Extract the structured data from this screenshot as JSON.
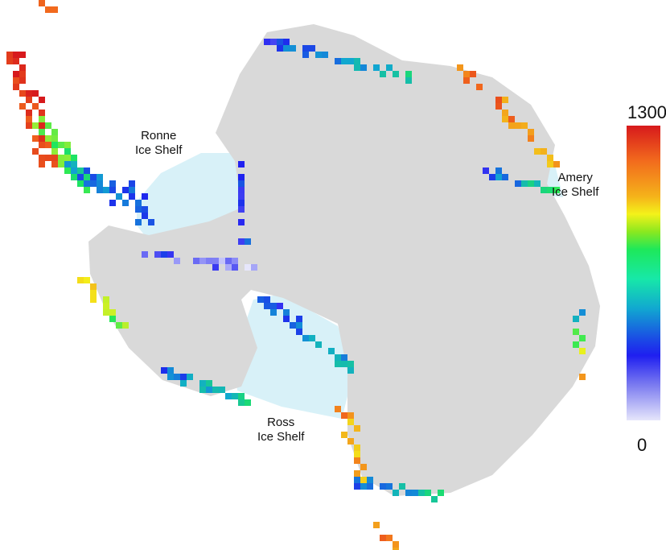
{
  "labels": {
    "ronne": [
      "Ronne",
      "Ice Shelf"
    ],
    "amery": [
      "Amery",
      "Ice Shelf"
    ],
    "ross": [
      "Ross",
      "Ice Shelf"
    ]
  },
  "colorbar": {
    "max_label": "1300",
    "min_label": "0",
    "max": 1300,
    "min": 0,
    "colors": [
      "#e6e6fb",
      "#1f1ff0",
      "#11a8d0",
      "#1ee85a",
      "#f4f21a",
      "#f26b1d",
      "#d7191c"
    ]
  },
  "colors": {
    "land": "#d9d9d9",
    "ice_shelf": "#d8f1f8"
  }
}
